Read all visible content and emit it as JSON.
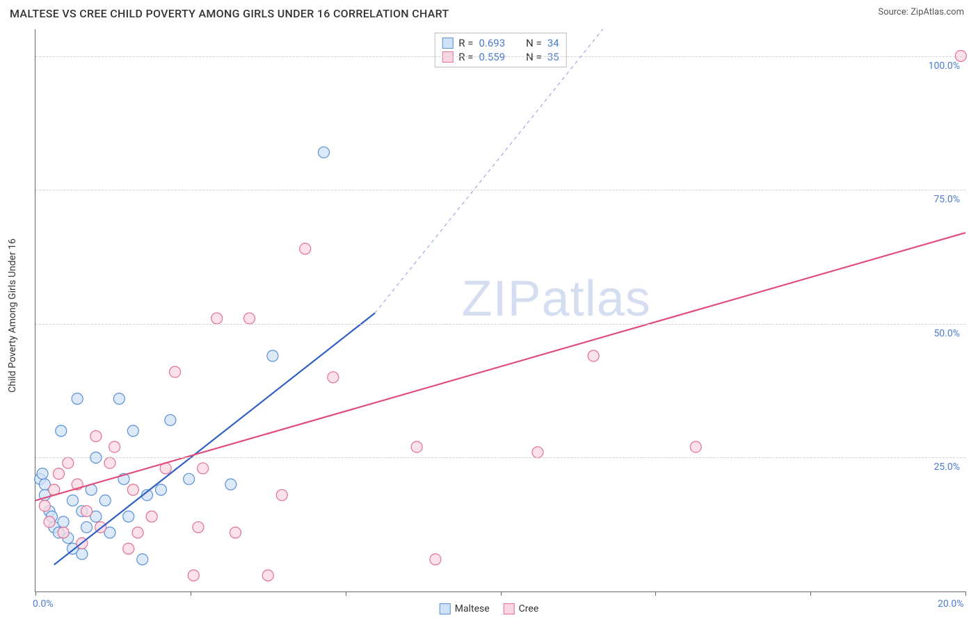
{
  "header": {
    "title": "MALTESE VS CREE CHILD POVERTY AMONG GIRLS UNDER 16 CORRELATION CHART",
    "source_prefix": "Source: ",
    "source_link": "ZipAtlas.com"
  },
  "chart": {
    "type": "scatter",
    "y_axis_title": "Child Poverty Among Girls Under 16",
    "xlim": [
      0,
      20
    ],
    "ylim": [
      0,
      105
    ],
    "x_ticks": [
      0,
      3.33,
      6.67,
      10,
      13.33,
      16.67,
      20
    ],
    "x_tick_labels_visible": {
      "0": "0.0%",
      "20": "20.0%"
    },
    "y_gridlines": [
      25,
      50,
      75,
      100
    ],
    "y_tick_labels": {
      "25": "25.0%",
      "50": "50.0%",
      "75": "75.0%",
      "100": "100.0%"
    },
    "background_color": "#ffffff",
    "grid_color": "#d0d0d0",
    "axis_color": "#666666",
    "tick_label_color": "#4a7bd0",
    "marker_radius": 8,
    "marker_stroke_width": 1.2,
    "series": [
      {
        "name": "Maltese",
        "fill": "#cfe2f7",
        "stroke": "#5a8fd6",
        "trend": {
          "color": "#2f5fc4",
          "width": 2.2,
          "x1": 0.4,
          "y1": 5,
          "x2": 7.3,
          "y2": 52,
          "dash_extend_to": {
            "x": 12.2,
            "y": 105
          }
        },
        "points": [
          [
            0.1,
            21
          ],
          [
            0.15,
            22
          ],
          [
            0.2,
            20
          ],
          [
            0.2,
            18
          ],
          [
            0.3,
            15
          ],
          [
            0.35,
            14
          ],
          [
            0.4,
            12
          ],
          [
            0.5,
            11
          ],
          [
            0.55,
            30
          ],
          [
            0.6,
            13
          ],
          [
            0.7,
            10
          ],
          [
            0.8,
            8
          ],
          [
            0.8,
            17
          ],
          [
            0.9,
            36
          ],
          [
            1.0,
            7
          ],
          [
            1.0,
            15
          ],
          [
            1.1,
            12
          ],
          [
            1.2,
            19
          ],
          [
            1.3,
            14
          ],
          [
            1.3,
            25
          ],
          [
            1.5,
            17
          ],
          [
            1.6,
            11
          ],
          [
            1.8,
            36
          ],
          [
            1.9,
            21
          ],
          [
            2.0,
            14
          ],
          [
            2.1,
            30
          ],
          [
            2.3,
            6
          ],
          [
            2.4,
            18
          ],
          [
            2.7,
            19
          ],
          [
            2.9,
            32
          ],
          [
            3.3,
            21
          ],
          [
            4.2,
            20
          ],
          [
            5.1,
            44
          ],
          [
            6.2,
            82
          ]
        ]
      },
      {
        "name": "Cree",
        "fill": "#f9d7e0",
        "stroke": "#e26f95",
        "trend": {
          "color": "#e04c7b",
          "width": 2.2,
          "x1": 0,
          "y1": 17,
          "x2": 20,
          "y2": 67
        },
        "points": [
          [
            0.2,
            16
          ],
          [
            0.3,
            13
          ],
          [
            0.4,
            19
          ],
          [
            0.5,
            22
          ],
          [
            0.6,
            11
          ],
          [
            0.7,
            24
          ],
          [
            0.9,
            20
          ],
          [
            1.0,
            9
          ],
          [
            1.1,
            15
          ],
          [
            1.3,
            29
          ],
          [
            1.4,
            12
          ],
          [
            1.6,
            24
          ],
          [
            1.7,
            27
          ],
          [
            2.0,
            8
          ],
          [
            2.1,
            19
          ],
          [
            2.2,
            11
          ],
          [
            2.5,
            14
          ],
          [
            2.8,
            23
          ],
          [
            3.0,
            41
          ],
          [
            3.4,
            3
          ],
          [
            3.5,
            12
          ],
          [
            3.6,
            23
          ],
          [
            3.9,
            51
          ],
          [
            4.3,
            11
          ],
          [
            4.6,
            51
          ],
          [
            5.0,
            3
          ],
          [
            5.3,
            18
          ],
          [
            5.8,
            64
          ],
          [
            6.4,
            40
          ],
          [
            8.2,
            27
          ],
          [
            8.6,
            6
          ],
          [
            10.8,
            26
          ],
          [
            12.0,
            44
          ],
          [
            14.2,
            27
          ],
          [
            19.9,
            100
          ]
        ]
      }
    ],
    "stats_box": {
      "rows": [
        {
          "swatch_fill": "#cfe2f7",
          "swatch_stroke": "#5a8fd6",
          "r_label": "R =",
          "r_val": "0.693",
          "n_label": "N =",
          "n_val": "34"
        },
        {
          "swatch_fill": "#f9d7e0",
          "swatch_stroke": "#e26f95",
          "r_label": "R =",
          "r_val": "0.559",
          "n_label": "N =",
          "n_val": "35"
        }
      ]
    },
    "bottom_legend": [
      {
        "swatch_fill": "#cfe2f7",
        "swatch_stroke": "#5a8fd6",
        "label": "Maltese"
      },
      {
        "swatch_fill": "#f9d7e0",
        "swatch_stroke": "#e26f95",
        "label": "Cree"
      }
    ],
    "watermark": {
      "bold": "ZIP",
      "rest": "atlas"
    }
  }
}
